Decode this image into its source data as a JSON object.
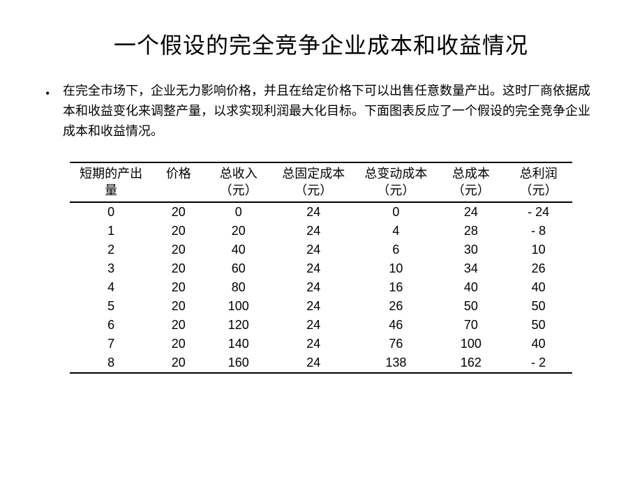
{
  "title": "一个假设的完全竞争企业成本和收益情况",
  "description": "在完全市场下，企业无力影响价格，并且在给定价格下可以出售任意数量产出。这时厂商依据成本和收益变化来调整产量，以求实现利润最大化目标。下面图表反应了一个假设的完全竞争企业成本和收益情况。",
  "bullet": "•",
  "table": {
    "headers": {
      "output": "短期的产出量",
      "price": "价格",
      "revenue_l1": "总收入",
      "revenue_l2": "（元）",
      "fixed_l1": "总固定成本",
      "fixed_l2": "（元）",
      "variable_l1": "总变动成本",
      "variable_l2": "（元）",
      "total_l1": "总成本",
      "total_l2": "（元）",
      "profit_l1": "总利润",
      "profit_l2": "（元）"
    },
    "rows": [
      {
        "output": "0",
        "price": "20",
        "revenue": "0",
        "fixed": "24",
        "variable": "0",
        "total": "24",
        "profit": "- 24"
      },
      {
        "output": "1",
        "price": "20",
        "revenue": "20",
        "fixed": "24",
        "variable": "4",
        "total": "28",
        "profit": "- 8"
      },
      {
        "output": "2",
        "price": "20",
        "revenue": "40",
        "fixed": "24",
        "variable": "6",
        "total": "30",
        "profit": "10"
      },
      {
        "output": "3",
        "price": "20",
        "revenue": "60",
        "fixed": "24",
        "variable": "10",
        "total": "34",
        "profit": "26"
      },
      {
        "output": "4",
        "price": "20",
        "revenue": "80",
        "fixed": "24",
        "variable": "16",
        "total": "40",
        "profit": "40"
      },
      {
        "output": "5",
        "price": "20",
        "revenue": "100",
        "fixed": "24",
        "variable": "26",
        "total": "50",
        "profit": "50"
      },
      {
        "output": "6",
        "price": "20",
        "revenue": "120",
        "fixed": "24",
        "variable": "46",
        "total": "70",
        "profit": "50"
      },
      {
        "output": "7",
        "price": "20",
        "revenue": "140",
        "fixed": "24",
        "variable": "76",
        "total": "100",
        "profit": "40"
      },
      {
        "output": "8",
        "price": "20",
        "revenue": "160",
        "fixed": "24",
        "variable": "138",
        "total": "162",
        "profit": "- 2"
      }
    ]
  },
  "styling": {
    "background_color": "#ffffff",
    "text_color": "#000000",
    "border_color": "#000000",
    "title_fontsize": 32,
    "body_fontsize": 18,
    "table_fontsize": 18,
    "font_family": "SimSun"
  }
}
